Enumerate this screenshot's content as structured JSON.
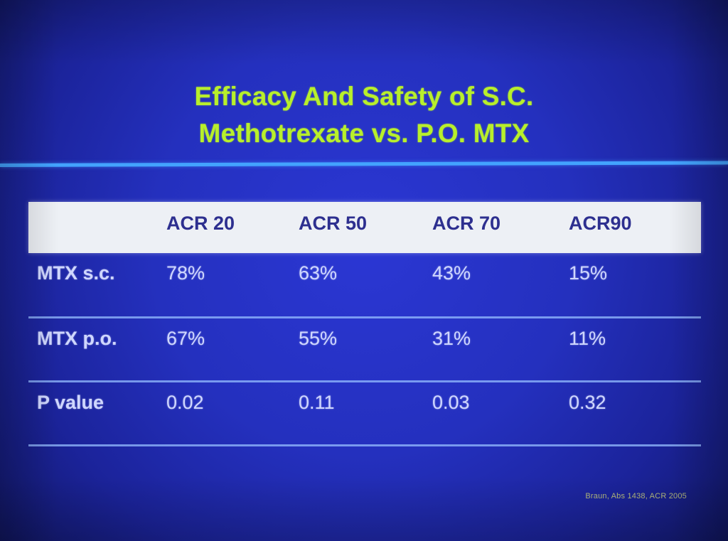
{
  "slide": {
    "title_lines": [
      "Efficacy And Safety of S.C.",
      "Methotrexate vs. P.O. MTX"
    ],
    "headers": [
      "ACR 20",
      "ACR 50",
      "ACR 70",
      "ACR90"
    ],
    "rows": [
      {
        "label": "MTX s.c.",
        "values": [
          "78%",
          "63%",
          "43%",
          "15%"
        ]
      },
      {
        "label": "MTX p.o.",
        "values": [
          "67%",
          "55%",
          "31%",
          "11%"
        ]
      },
      {
        "label": "P value",
        "values": [
          "0.02",
          "0.11",
          "0.03",
          "0.32"
        ]
      }
    ],
    "footer": "Braun, Abs 1438, ACR 2005"
  }
}
